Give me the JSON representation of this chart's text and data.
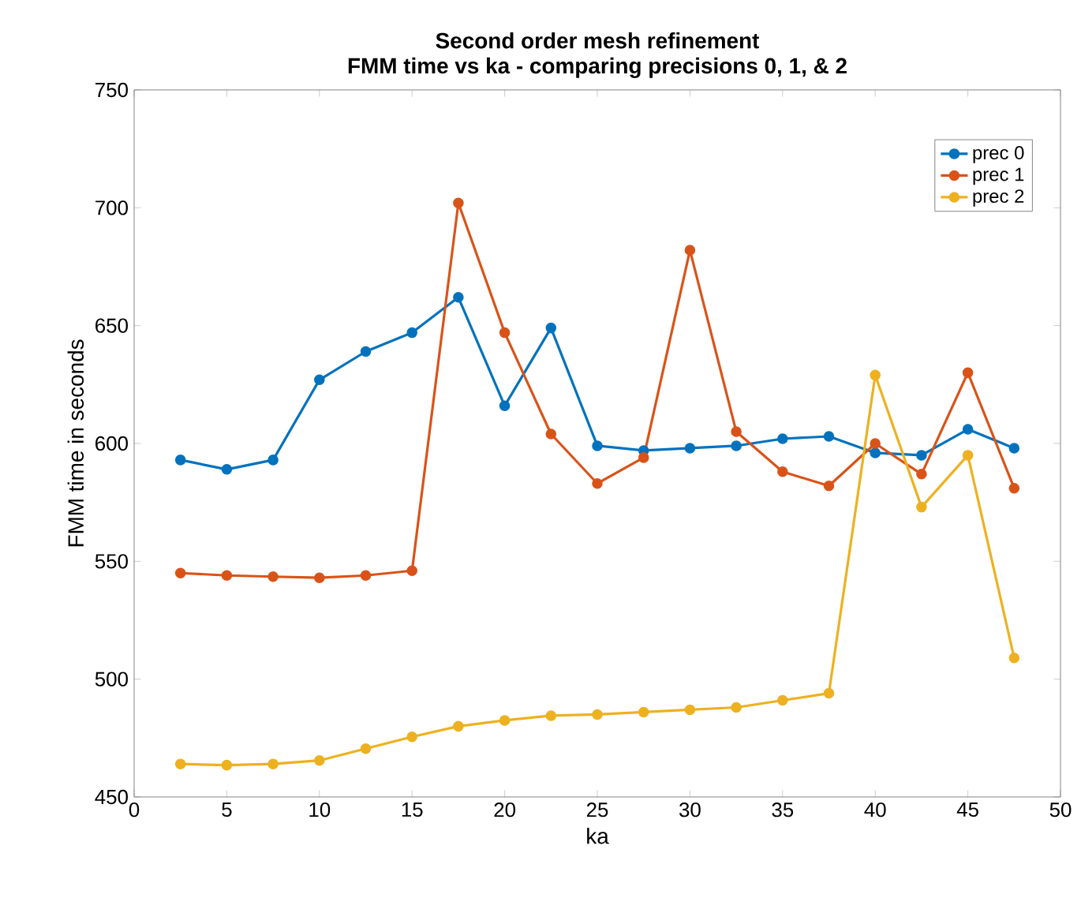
{
  "chart_data": {
    "type": "line",
    "title": "Second order mesh refinement\nFMM time vs ka - comparing precisions 0, 1, & 2",
    "xlabel": "ka",
    "ylabel": "FMM time in seconds",
    "x": [
      2.5,
      5,
      7.5,
      10,
      12.5,
      15,
      17.5,
      20,
      22.5,
      25,
      27.5,
      30,
      32.5,
      35,
      37.5,
      40,
      42.5,
      45,
      47.5
    ],
    "series": [
      {
        "name": "prec 0",
        "color": "#0072bd",
        "values": [
          593,
          589,
          593,
          627,
          639,
          647,
          662,
          616,
          649,
          599,
          597,
          598,
          599,
          602,
          603,
          596,
          595,
          606,
          598
        ]
      },
      {
        "name": "prec 1",
        "color": "#d95319",
        "values": [
          545,
          544,
          543.5,
          543,
          544,
          546,
          702,
          647,
          604,
          583,
          594,
          682,
          605,
          588,
          582,
          600,
          587,
          630,
          581
        ]
      },
      {
        "name": "prec 2",
        "color": "#edb120",
        "values": [
          464,
          463.5,
          464,
          465.5,
          470.5,
          475.5,
          480,
          482.5,
          484.5,
          485,
          486,
          487,
          488,
          491,
          494,
          629,
          573,
          595,
          509
        ]
      }
    ],
    "xlim": [
      0,
      50
    ],
    "ylim": [
      450,
      750
    ],
    "xticks": [
      0,
      5,
      10,
      15,
      20,
      25,
      30,
      35,
      40,
      45,
      50
    ],
    "yticks": [
      450,
      500,
      550,
      600,
      650,
      700,
      750
    ],
    "legend": "top right",
    "marker": "circle",
    "line_style": "solid",
    "grid": false
  }
}
